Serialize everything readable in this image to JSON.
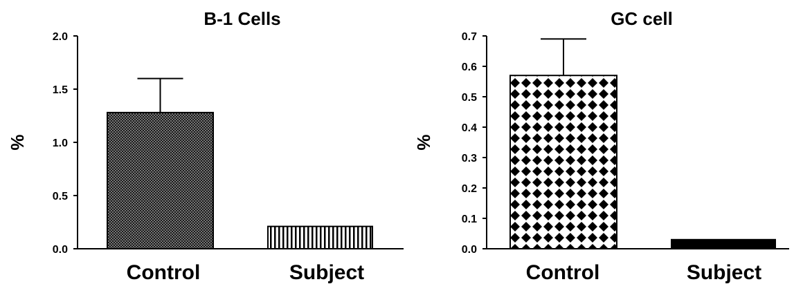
{
  "chart_data": [
    {
      "type": "bar",
      "title": "B-1 Cells",
      "ylabel": "%",
      "xlabel": "",
      "categories": [
        "Control",
        "Subject"
      ],
      "values": [
        1.28,
        0.21
      ],
      "errors": [
        0.32,
        0
      ],
      "ylim": [
        0,
        2.0
      ],
      "yticks": [
        0.0,
        0.5,
        1.0,
        1.5,
        2.0
      ],
      "ytick_labels": [
        "0.0",
        "0.5",
        "1.0",
        "1.5",
        "2.0"
      ],
      "bar_fills": [
        "dotted-dark",
        "vertical-stripes"
      ],
      "grid": false,
      "legend": "none"
    },
    {
      "type": "bar",
      "title": "GC cell",
      "ylabel": "%",
      "xlabel": "",
      "categories": [
        "Control",
        "Subject"
      ],
      "values": [
        0.57,
        0.03
      ],
      "errors": [
        0.12,
        0
      ],
      "ylim": [
        0,
        0.7
      ],
      "yticks": [
        0.0,
        0.1,
        0.2,
        0.3,
        0.4,
        0.5,
        0.6,
        0.7
      ],
      "ytick_labels": [
        "0.0",
        "0.1",
        "0.2",
        "0.3",
        "0.4",
        "0.5",
        "0.6",
        "0.7"
      ],
      "bar_fills": [
        "diamond-checker",
        "solid-black"
      ],
      "grid": false,
      "legend": "none"
    }
  ],
  "colors": {
    "ink": "#000000",
    "background": "#ffffff"
  }
}
